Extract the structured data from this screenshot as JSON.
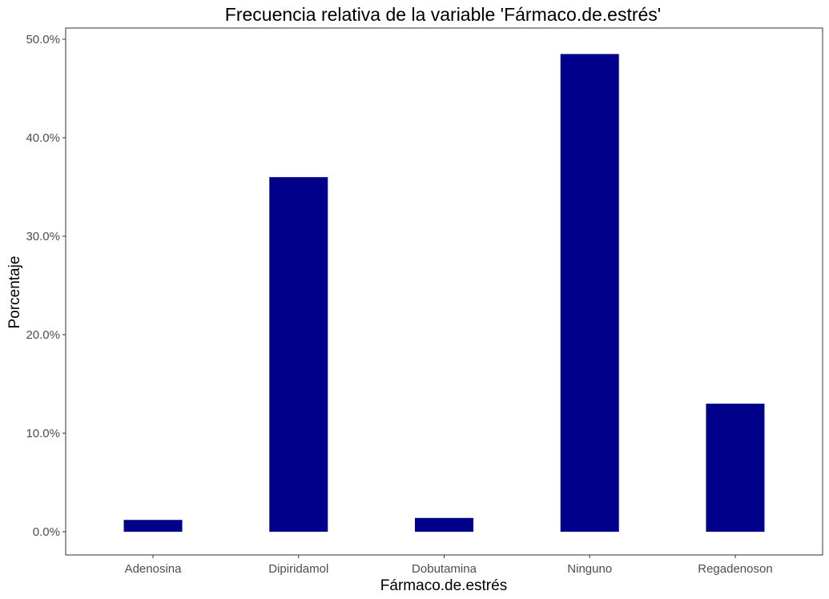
{
  "chart_data": {
    "type": "bar",
    "title": "Frecuencia relativa de la variable 'Fármaco.de.estrés'",
    "xlabel": "Fármaco.de.estrés",
    "ylabel": "Porcentaje",
    "categories": [
      "Adenosina",
      "Dipiridamol",
      "Dobutamina",
      "Ninguno",
      "Regadenoson"
    ],
    "values": [
      1.2,
      36.0,
      1.4,
      48.5,
      13.0
    ],
    "ylim": [
      0,
      50
    ],
    "yticks": [
      0,
      10,
      20,
      30,
      40,
      50
    ],
    "ytick_labels": [
      "0.0%",
      "10.0%",
      "20.0%",
      "30.0%",
      "40.0%",
      "50.0%"
    ],
    "grid": false,
    "legend": "none",
    "bar_color": "#00008b",
    "axis_color": "#333333"
  }
}
